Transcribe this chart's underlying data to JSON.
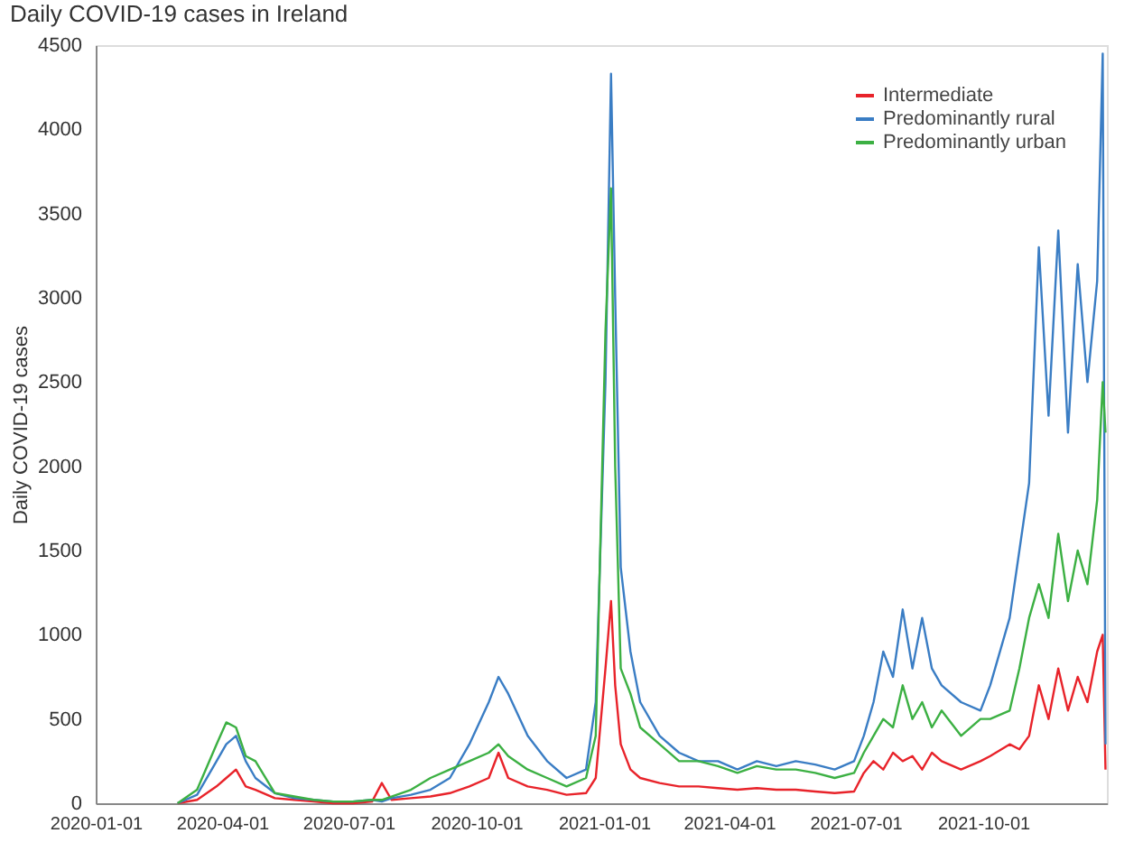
{
  "chart_data": {
    "type": "line",
    "title": "Daily COVID-19 cases in Ireland",
    "ylabel": "Daily COVID-19 cases",
    "x": [
      "2020-02-29",
      "2020-03-14",
      "2020-03-28",
      "2020-04-04",
      "2020-04-11",
      "2020-04-18",
      "2020-04-25",
      "2020-05-09",
      "2020-05-23",
      "2020-06-06",
      "2020-06-20",
      "2020-07-04",
      "2020-07-18",
      "2020-07-25",
      "2020-08-01",
      "2020-08-15",
      "2020-08-29",
      "2020-09-12",
      "2020-09-26",
      "2020-10-10",
      "2020-10-17",
      "2020-10-24",
      "2020-11-07",
      "2020-11-21",
      "2020-12-05",
      "2020-12-19",
      "2020-12-26",
      "2021-01-02",
      "2021-01-06",
      "2021-01-09",
      "2021-01-13",
      "2021-01-20",
      "2021-01-27",
      "2021-02-10",
      "2021-02-24",
      "2021-03-10",
      "2021-03-24",
      "2021-04-07",
      "2021-04-21",
      "2021-05-05",
      "2021-05-19",
      "2021-06-02",
      "2021-06-16",
      "2021-06-30",
      "2021-07-07",
      "2021-07-14",
      "2021-07-21",
      "2021-07-28",
      "2021-08-04",
      "2021-08-11",
      "2021-08-18",
      "2021-08-25",
      "2021-09-01",
      "2021-09-15",
      "2021-09-29",
      "2021-10-06",
      "2021-10-20",
      "2021-10-27",
      "2021-11-03",
      "2021-11-10",
      "2021-11-17",
      "2021-11-24",
      "2021-12-01",
      "2021-12-08",
      "2021-12-15",
      "2021-12-22",
      "2021-12-26",
      "2021-12-28"
    ],
    "series": [
      {
        "name": "Intermediate",
        "color": "#e8232a",
        "values": [
          0,
          20,
          100,
          150,
          200,
          100,
          80,
          30,
          20,
          10,
          0,
          0,
          10,
          120,
          20,
          30,
          40,
          60,
          100,
          150,
          300,
          150,
          100,
          80,
          50,
          60,
          150,
          800,
          1200,
          700,
          350,
          200,
          150,
          120,
          100,
          100,
          90,
          80,
          90,
          80,
          80,
          70,
          60,
          70,
          180,
          250,
          200,
          300,
          250,
          280,
          200,
          300,
          250,
          200,
          250,
          280,
          350,
          320,
          400,
          700,
          500,
          800,
          550,
          750,
          600,
          900,
          1000,
          200
        ]
      },
      {
        "name": "Predominantly rural",
        "color": "#3a7dc4",
        "values": [
          0,
          50,
          250,
          350,
          400,
          250,
          150,
          60,
          30,
          20,
          10,
          10,
          20,
          10,
          30,
          50,
          80,
          150,
          350,
          600,
          750,
          650,
          400,
          250,
          150,
          200,
          600,
          2500,
          4330,
          3000,
          1400,
          900,
          600,
          400,
          300,
          250,
          250,
          200,
          250,
          220,
          250,
          230,
          200,
          250,
          400,
          600,
          900,
          750,
          1150,
          800,
          1100,
          800,
          700,
          600,
          550,
          700,
          1100,
          1500,
          1900,
          3300,
          2300,
          3400,
          2200,
          3200,
          2500,
          3100,
          4450,
          350
        ]
      },
      {
        "name": "Predominantly urban",
        "color": "#3cb043",
        "values": [
          0,
          80,
          350,
          480,
          450,
          280,
          250,
          60,
          40,
          20,
          10,
          10,
          20,
          20,
          40,
          80,
          150,
          200,
          250,
          300,
          350,
          280,
          200,
          150,
          100,
          150,
          400,
          2800,
          3650,
          2000,
          800,
          650,
          450,
          350,
          250,
          250,
          220,
          180,
          220,
          200,
          200,
          180,
          150,
          180,
          300,
          400,
          500,
          450,
          700,
          500,
          600,
          450,
          550,
          400,
          500,
          500,
          550,
          800,
          1100,
          1300,
          1100,
          1600,
          1200,
          1500,
          1300,
          1800,
          2500,
          2200
        ]
      }
    ],
    "xlim": [
      "2020-01-01",
      "2021-12-29"
    ],
    "xticks": [
      "2020-01-01",
      "2020-04-01",
      "2020-07-01",
      "2020-10-01",
      "2021-01-01",
      "2021-04-01",
      "2021-07-01",
      "2021-10-01"
    ],
    "ylim": [
      0,
      4500
    ],
    "yticks": [
      0,
      500,
      1000,
      1500,
      2000,
      2500,
      3000,
      3500,
      4000,
      4500
    ],
    "grid": false,
    "legend": "top right",
    "line_style": "solid",
    "marker": "none"
  }
}
